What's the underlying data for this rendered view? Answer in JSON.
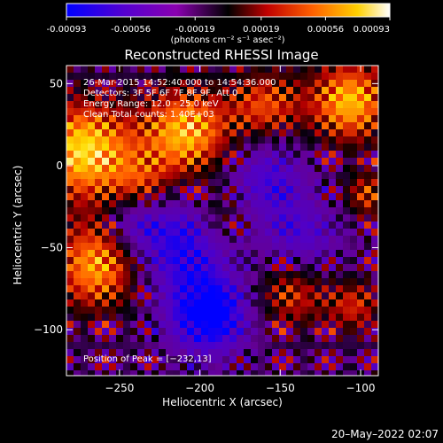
{
  "chart_data": {
    "type": "heatmap",
    "title": "Reconstructed RHESSI Image",
    "xlabel": "Heliocentric X (arcsec)",
    "ylabel": "Heliocentric Y (arcsec)",
    "xlim": [
      -283,
      -89
    ],
    "ylim": [
      -128,
      61
    ],
    "x_ticks": [
      -250,
      -200,
      -150,
      -100
    ],
    "x_tick_labels": [
      "−250",
      "−200",
      "−150",
      "−100"
    ],
    "y_ticks": [
      -100,
      -50,
      0,
      50
    ],
    "y_tick_labels": [
      "−100",
      "−50",
      "0",
      "50"
    ],
    "colorbar": {
      "range": [
        -0.00093,
        0.00093
      ],
      "tick_values": [
        -0.00093,
        -0.00056,
        -0.00019,
        0.00019,
        0.00056,
        0.00093
      ],
      "tick_labels": [
        "-0.00093",
        "-0.00056",
        "-0.00019",
        "0.00019",
        "0.00056",
        "0.00093"
      ],
      "unit_label": "(photons cm⁻² s⁻¹ asec⁻²)",
      "colors": [
        "#0000ff",
        "#6a00c8",
        "#9000aa",
        "#000000",
        "#d00000",
        "#ff7000",
        "#ffe000",
        "#ffffff"
      ]
    },
    "info_lines": [
      "26-Mar-2015 14:52:40.000 to 14:54:36.000",
      "Detectors: 3F 5F 6F 7F 8F 9F, Att 0",
      "Energy Range: 12.0 - 25.0 keV",
      "Clean     Total counts: 1.40E+03"
    ],
    "peak_label": "Position of Peak = [−232,13]",
    "peak_position": [
      -232,
      13
    ],
    "grid": false,
    "legend": "none"
  },
  "footer": {
    "date": "20–May–2022 02:07"
  }
}
